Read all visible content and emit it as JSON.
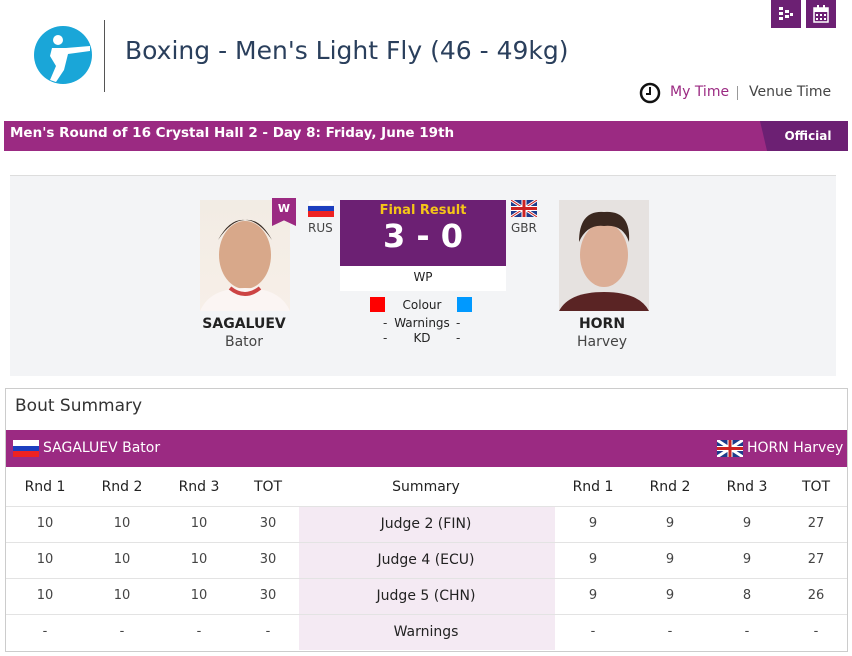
{
  "header": {
    "title": "Boxing - Men's Light Fly (46 - 49kg)",
    "my_time": "My Time",
    "venue_time": "Venue Time",
    "icons": [
      "bracket-icon",
      "calendar-icon",
      "clock-icon",
      "boxing-logo-icon"
    ]
  },
  "event_bar": {
    "info": "Men's Round of 16  Crystal Hall 2 - Day 8: Friday, June 19th",
    "status": "Official"
  },
  "bout": {
    "red": {
      "surname": "SAGALUEV",
      "given": "Bator",
      "country": "RUS",
      "winner_badge": "W",
      "full": "SAGALUEV Bator"
    },
    "blue": {
      "surname": "HORN",
      "given": "Harvey",
      "country": "GBR",
      "full": "HORN Harvey"
    },
    "result_label": "Final Result",
    "score": "3 - 0",
    "method": "WP",
    "colour_label": "Colour",
    "warnings_label": "Warnings",
    "kd_label": "KD",
    "red_warnings": "-",
    "blue_warnings": "-",
    "red_kd": "-",
    "blue_kd": "-",
    "colors": {
      "red": "#ff0000",
      "blue": "#0099ff",
      "purple": "#6c2073",
      "accent": "#9b2a82",
      "gold": "#f5c518"
    }
  },
  "summary": {
    "title": "Bout Summary",
    "columns": [
      "Rnd 1",
      "Rnd 2",
      "Rnd 3",
      "TOT",
      "Summary",
      "Rnd 1",
      "Rnd 2",
      "Rnd 3",
      "TOT"
    ],
    "rows": [
      [
        "10",
        "10",
        "10",
        "30",
        "Judge 2 (FIN)",
        "9",
        "9",
        "9",
        "27"
      ],
      [
        "10",
        "10",
        "10",
        "30",
        "Judge 4 (ECU)",
        "9",
        "9",
        "9",
        "27"
      ],
      [
        "10",
        "10",
        "10",
        "30",
        "Judge 5 (CHN)",
        "9",
        "9",
        "8",
        "26"
      ],
      [
        "-",
        "-",
        "-",
        "-",
        "Warnings",
        "-",
        "-",
        "-",
        "-"
      ]
    ]
  }
}
